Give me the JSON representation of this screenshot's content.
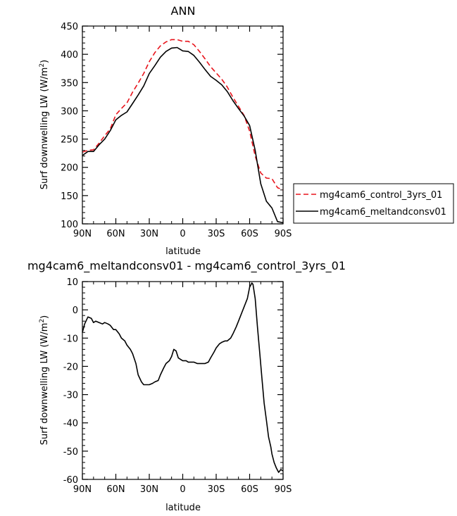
{
  "chart_data": [
    {
      "type": "line",
      "title": "ANN",
      "xlabel": "latitude",
      "ylabel": "Surf downwelling LW (W/m²)",
      "ylabel_main": "Surf downwelling LW (W/m",
      "ylabel_sup": "2",
      "ylabel_tail": ")",
      "xlim": [
        -90,
        90
      ],
      "ylim": [
        100,
        450
      ],
      "x_ticks": [
        -90,
        -60,
        -30,
        0,
        30,
        60,
        90
      ],
      "x_tick_labels": [
        "90N",
        "60N",
        "30N",
        "0",
        "30S",
        "60S",
        "90S"
      ],
      "y_ticks": [
        100,
        150,
        200,
        250,
        300,
        350,
        400,
        450
      ],
      "y_tick_labels": [
        "100",
        "150",
        "200",
        "250",
        "300",
        "350",
        "400",
        "450"
      ],
      "legend_position": "right",
      "series": [
        {
          "name": "mg4cam6_control_3yrs_01",
          "color": "#e8141c",
          "dash": "dashed",
          "x": [
            -90,
            -85,
            -80,
            -75,
            -70,
            -65,
            -60,
            -55,
            -50,
            -45,
            -40,
            -35,
            -30,
            -25,
            -20,
            -15,
            -10,
            -5,
            0,
            5,
            10,
            15,
            20,
            25,
            30,
            35,
            40,
            45,
            50,
            55,
            60,
            65,
            70,
            75,
            80,
            85,
            90
          ],
          "y": [
            227,
            230,
            231,
            243,
            256,
            268,
            293,
            304,
            314,
            333,
            349,
            366,
            387,
            403,
            415,
            422,
            426,
            426,
            423,
            423,
            417,
            405,
            392,
            378,
            367,
            356,
            342,
            324,
            308,
            292,
            264,
            220,
            190,
            181,
            180,
            164,
            160
          ]
        },
        {
          "name": "mg4cam6_meltandconsv01",
          "color": "#000000",
          "dash": "solid",
          "x": [
            -90,
            -85,
            -80,
            -75,
            -70,
            -65,
            -60,
            -55,
            -50,
            -45,
            -40,
            -35,
            -30,
            -25,
            -20,
            -15,
            -10,
            -5,
            0,
            5,
            10,
            15,
            20,
            25,
            30,
            35,
            40,
            45,
            50,
            55,
            60,
            65,
            70,
            75,
            80,
            85,
            90
          ],
          "y": [
            221,
            228,
            228,
            240,
            250,
            265,
            284,
            292,
            298,
            313,
            328,
            344,
            366,
            380,
            395,
            405,
            411,
            412,
            406,
            405,
            398,
            386,
            373,
            361,
            354,
            346,
            334,
            318,
            304,
            291,
            274,
            230,
            171,
            140,
            128,
            104,
            102
          ]
        }
      ]
    },
    {
      "type": "line",
      "title": "mg4cam6_meltandconsv01 - mg4cam6_control_3yrs_01",
      "xlabel": "latitude",
      "ylabel": "Surf downwelling LW (W/m²)",
      "ylabel_main": "Surf downwelling LW (W/m",
      "ylabel_sup": "2",
      "ylabel_tail": ")",
      "xlim": [
        -90,
        90
      ],
      "ylim": [
        -60,
        10
      ],
      "x_ticks": [
        -90,
        -60,
        -30,
        0,
        30,
        60,
        90
      ],
      "x_tick_labels": [
        "90N",
        "60N",
        "30N",
        "0",
        "30S",
        "60S",
        "90S"
      ],
      "y_ticks": [
        -60,
        -50,
        -40,
        -30,
        -20,
        -10,
        0,
        10
      ],
      "y_tick_labels": [
        "-60",
        "-50",
        "-40",
        "-30",
        "-20",
        "-10",
        "0",
        "10"
      ],
      "series": [
        {
          "color": "#000000",
          "dash": "solid",
          "x": [
            -90,
            -88,
            -85,
            -82,
            -80,
            -78,
            -75,
            -72,
            -70,
            -67,
            -65,
            -62,
            -60,
            -57,
            -55,
            -52,
            -50,
            -47,
            -45,
            -42,
            -40,
            -37,
            -35,
            -32,
            -30,
            -27,
            -25,
            -22,
            -20,
            -17,
            -15,
            -12,
            -10,
            -8,
            -6,
            -4,
            -2,
            0,
            3,
            5,
            8,
            10,
            13,
            15,
            18,
            20,
            23,
            25,
            28,
            30,
            33,
            35,
            38,
            40,
            43,
            45,
            48,
            50,
            53,
            55,
            58,
            60,
            62,
            63,
            65,
            67,
            69,
            71,
            73,
            75,
            77,
            79,
            80,
            82,
            84,
            86,
            88,
            90
          ],
          "y": [
            -8,
            -5,
            -2.5,
            -3,
            -4.5,
            -4,
            -4.5,
            -5,
            -4.5,
            -5,
            -5.5,
            -7,
            -7,
            -8.5,
            -10,
            -11,
            -12.5,
            -14,
            -15.5,
            -19,
            -23,
            -25.5,
            -26.5,
            -26.5,
            -26.5,
            -26,
            -25.5,
            -25,
            -23,
            -20.5,
            -19,
            -18,
            -16.5,
            -14,
            -14.5,
            -17,
            -17.5,
            -18,
            -18,
            -18.5,
            -18.5,
            -18.5,
            -19,
            -19,
            -19,
            -19,
            -18.5,
            -17,
            -15,
            -13.5,
            -12,
            -11.5,
            -11,
            -11,
            -10,
            -8.5,
            -6,
            -4,
            -1,
            1,
            4,
            8,
            9.5,
            9,
            4,
            -6,
            -15,
            -24,
            -33,
            -39,
            -45,
            -48.5,
            -51,
            -54,
            -56,
            -57.5,
            -56.5,
            -57
          ]
        }
      ]
    }
  ]
}
